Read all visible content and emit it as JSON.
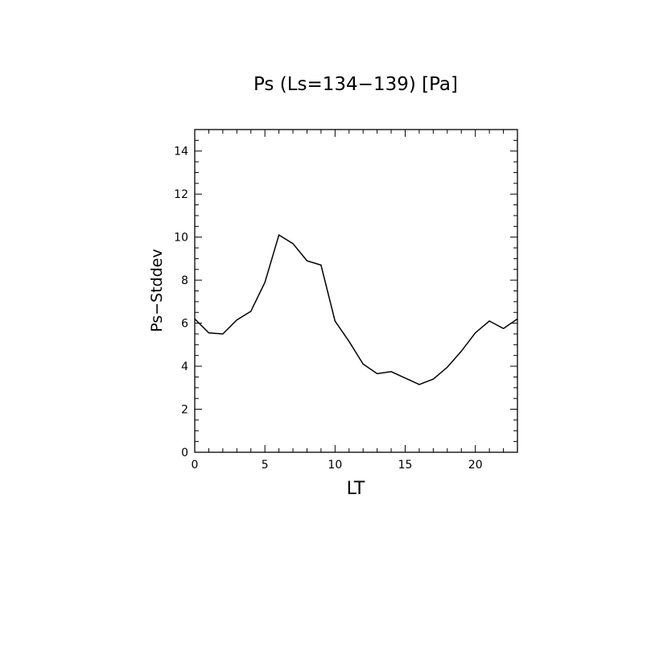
{
  "chart_data": {
    "type": "line",
    "title": "Ps (Ls=134−139) [Pa]",
    "xlabel": "LT",
    "ylabel": "Ps−Stddev",
    "xlim": [
      0,
      23
    ],
    "ylim": [
      0,
      15
    ],
    "x_ticks": [
      0,
      5,
      10,
      15,
      20
    ],
    "y_ticks": [
      0,
      2,
      4,
      6,
      8,
      10,
      12,
      14
    ],
    "x_tick_labels": [
      "0",
      "5",
      "10",
      "15",
      "20"
    ],
    "y_tick_labels": [
      "0",
      "2",
      "4",
      "6",
      "8",
      "10",
      "12",
      "14"
    ],
    "grid": false,
    "series": [
      {
        "x": [
          0,
          1,
          2,
          3,
          4,
          5,
          6,
          7,
          8,
          9,
          10,
          11,
          12,
          13,
          14,
          15,
          16,
          17,
          18,
          19,
          20,
          21,
          22,
          23
        ],
        "values": [
          6.2,
          5.55,
          5.5,
          6.15,
          6.55,
          7.9,
          10.1,
          9.7,
          8.9,
          8.7,
          6.1,
          5.15,
          4.1,
          3.65,
          3.75,
          3.45,
          3.15,
          3.4,
          3.95,
          4.7,
          5.55,
          6.1,
          5.75,
          6.2
        ]
      }
    ]
  }
}
